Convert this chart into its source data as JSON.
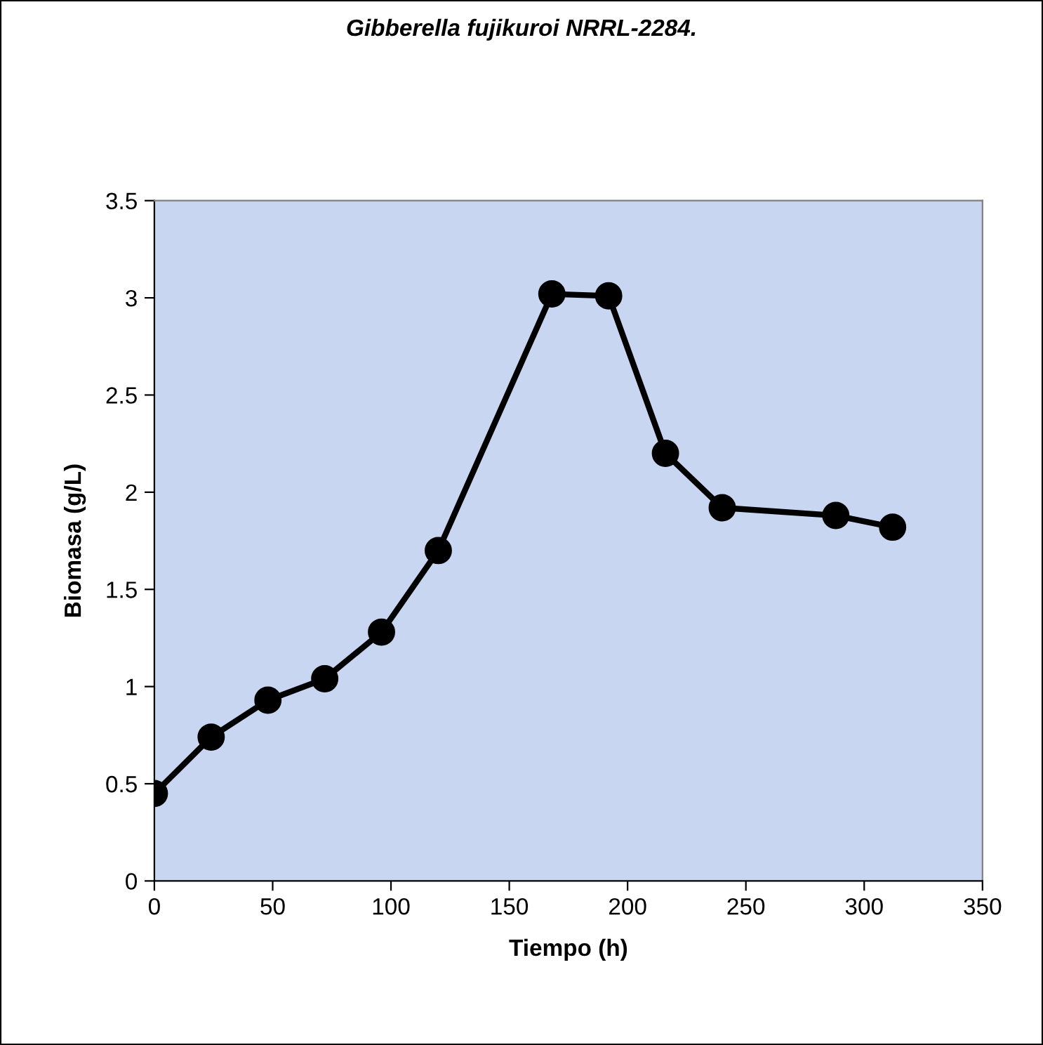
{
  "chart_data": {
    "type": "line",
    "title": "Gibberella fujikuroi NRRL-2284.",
    "xlabel": "Tiempo (h)",
    "ylabel": "Biomasa (g/L)",
    "x": [
      0,
      24,
      48,
      72,
      96,
      120,
      168,
      192,
      216,
      240,
      288,
      312
    ],
    "series": [
      {
        "color": "#000000",
        "values": [
          0.45,
          0.74,
          0.93,
          1.04,
          1.28,
          1.7,
          3.02,
          3.01,
          2.2,
          1.92,
          1.88,
          1.82
        ]
      }
    ],
    "xlim": [
      0,
      350
    ],
    "xticks": [
      0,
      50,
      100,
      150,
      200,
      250,
      300,
      350
    ],
    "ylim": [
      0,
      3.5
    ],
    "yticks": [
      0,
      0.5,
      1,
      1.5,
      2,
      2.5,
      3,
      3.5
    ],
    "marker": "circle",
    "line_style": "solid",
    "grid": false,
    "legend": false
  }
}
